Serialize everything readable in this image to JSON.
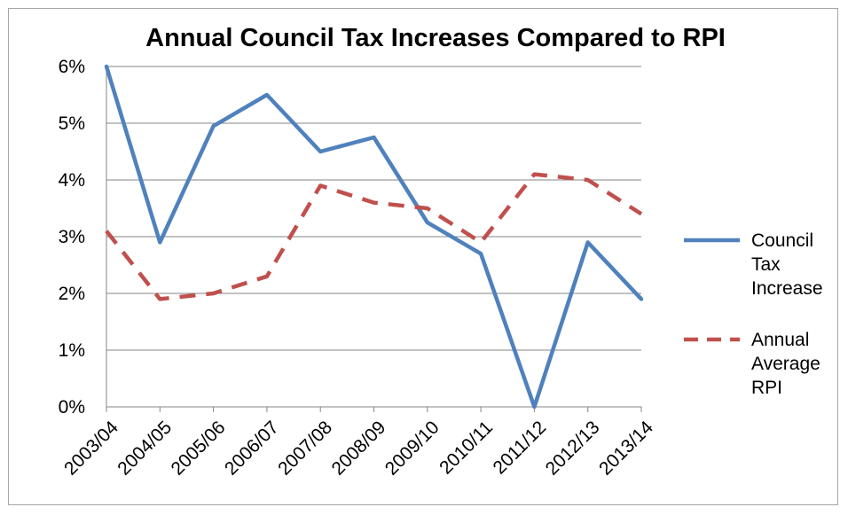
{
  "chart_data": {
    "type": "line",
    "title": "Annual Council Tax Increases Compared to RPI",
    "categories": [
      "2003/04",
      "2004/05",
      "2005/06",
      "2006/07",
      "2007/08",
      "2008/09",
      "2009/10",
      "2010/11",
      "2011/12",
      "2012/13",
      "2013/14"
    ],
    "ylim": [
      0,
      0.06
    ],
    "yticks": [
      "0%",
      "1%",
      "2%",
      "3%",
      "4%",
      "5%",
      "6%"
    ],
    "grid": true,
    "legend_position": "right",
    "series": [
      {
        "name_lines": [
          "Council",
          "Tax",
          "Increase"
        ],
        "color": "#4f81bd",
        "style": "solid",
        "values": [
          0.06,
          0.029,
          0.0495,
          0.055,
          0.045,
          0.0475,
          0.0325,
          0.027,
          0.0,
          0.029,
          0.019
        ]
      },
      {
        "name_lines": [
          "Annual",
          "Average",
          "RPI"
        ],
        "color": "#c0504d",
        "style": "dashed",
        "values": [
          0.031,
          0.019,
          0.02,
          0.023,
          0.039,
          0.036,
          0.035,
          0.029,
          0.041,
          0.04,
          0.034
        ]
      }
    ]
  }
}
